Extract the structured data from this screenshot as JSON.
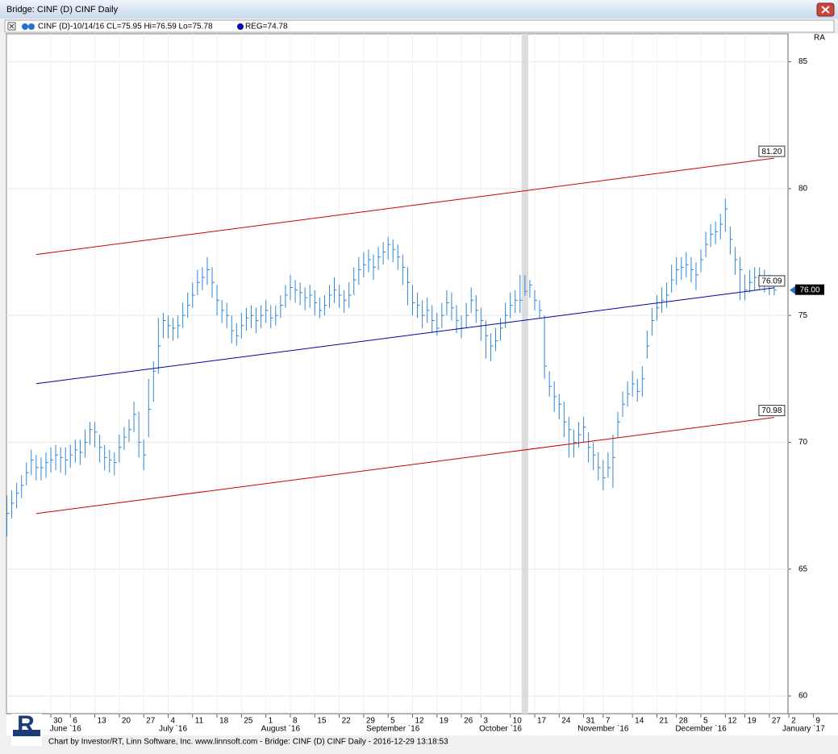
{
  "window_title": "Bridge: CINF (D) CINF Daily",
  "header_text": "CINF (D)-10/14/16 CL=75.95 Hi=76.59 Lo=75.78",
  "reg_text": "REG=74.78",
  "axis_corner_label": "RA",
  "logo": "R",
  "footer": "Chart by Investor/RT, Linn Software, Inc. www.linnsoft.com - Bridge: CINF (D) CINF Daily - 2016-12-29 13:18:53",
  "chart_data": {
    "type": "ohlc",
    "color": "#2f86d6",
    "ylim": [
      59.3,
      86.1
    ],
    "yticks": [
      60,
      65,
      70,
      75,
      80,
      85
    ],
    "xlim": [
      0,
      165
    ],
    "grid": true,
    "cursor_index": 106,
    "xticks": [
      {
        "value": 9,
        "label": "30"
      },
      {
        "value": 13,
        "label": "6"
      },
      {
        "value": 18,
        "label": "13"
      },
      {
        "value": 23,
        "label": "20"
      },
      {
        "value": 28,
        "label": "27"
      },
      {
        "value": 33,
        "label": "4"
      },
      {
        "value": 38,
        "label": "11"
      },
      {
        "value": 43,
        "label": "18"
      },
      {
        "value": 48,
        "label": "25"
      },
      {
        "value": 53,
        "label": "1"
      },
      {
        "value": 58,
        "label": "8"
      },
      {
        "value": 63,
        "label": "15"
      },
      {
        "value": 68,
        "label": "22"
      },
      {
        "value": 73,
        "label": "29"
      },
      {
        "value": 78,
        "label": "5"
      },
      {
        "value": 83,
        "label": "12"
      },
      {
        "value": 88,
        "label": "19"
      },
      {
        "value": 93,
        "label": "26"
      },
      {
        "value": 97,
        "label": "3"
      },
      {
        "value": 103,
        "label": "10"
      },
      {
        "value": 108,
        "label": "17"
      },
      {
        "value": 113,
        "label": "24"
      },
      {
        "value": 118,
        "label": "31"
      },
      {
        "value": 122,
        "label": "7"
      },
      {
        "value": 128,
        "label": "14"
      },
      {
        "value": 133,
        "label": "21"
      },
      {
        "value": 137,
        "label": "28"
      },
      {
        "value": 142,
        "label": "5"
      },
      {
        "value": 147,
        "label": "12"
      },
      {
        "value": 151,
        "label": "19"
      },
      {
        "value": 156,
        "label": "27"
      },
      {
        "value": 160,
        "label": "2"
      },
      {
        "value": 165,
        "label": "9"
      }
    ],
    "month_ticks": [
      {
        "value": 12,
        "label": "June `16"
      },
      {
        "value": 34,
        "label": "July `16"
      },
      {
        "value": 56,
        "label": "August `16"
      },
      {
        "value": 79,
        "label": "September `16"
      },
      {
        "value": 101,
        "label": "October `16"
      },
      {
        "value": 122,
        "label": "November `16"
      },
      {
        "value": 142,
        "label": "December `16"
      },
      {
        "value": 163,
        "label": "January `17"
      }
    ],
    "high": [
      67.9,
      68.1,
      68.4,
      68.7,
      69.2,
      69.7,
      69.5,
      69.4,
      69.6,
      69.8,
      69.9,
      69.8,
      69.8,
      69.9,
      70.1,
      70.1,
      70.5,
      70.8,
      70.8,
      70.3,
      69.9,
      69.7,
      69.6,
      70.3,
      70.6,
      70.9,
      71.6,
      71.2,
      70.1,
      72.5,
      73.2,
      74.9,
      75.1,
      75.0,
      74.9,
      75.0,
      75.5,
      75.9,
      76.3,
      76.8,
      76.9,
      77.3,
      76.9,
      76.2,
      75.6,
      75.5,
      75.0,
      74.7,
      75.1,
      75.3,
      75.4,
      75.3,
      75.4,
      75.6,
      75.4,
      75.4,
      75.8,
      76.2,
      76.6,
      76.4,
      76.3,
      76.1,
      76.2,
      76.0,
      75.7,
      75.8,
      76.2,
      76.5,
      76.2,
      76.0,
      76.3,
      76.9,
      77.3,
      77.5,
      77.6,
      77.4,
      77.7,
      77.9,
      78.1,
      78.0,
      77.8,
      77.4,
      76.9,
      76.2,
      75.9,
      75.6,
      75.7,
      75.4,
      75.1,
      75.5,
      76.0,
      75.9,
      75.4,
      75.0,
      75.5,
      76.1,
      75.8,
      75.3,
      74.8,
      74.3,
      74.5,
      74.9,
      75.5,
      75.9,
      76.0,
      76.6,
      76.59,
      76.4,
      76.0,
      75.6,
      75.0,
      72.8,
      72.4,
      71.9,
      71.6,
      71.0,
      70.5,
      70.8,
      71.0,
      70.4,
      70.0,
      69.6,
      69.3,
      69.6,
      70.3,
      71.2,
      72.0,
      72.4,
      72.8,
      72.5,
      73.0,
      74.4,
      75.3,
      75.8,
      76.1,
      76.3,
      77.0,
      77.3,
      77.3,
      77.5,
      77.3,
      77.1,
      77.6,
      78.3,
      78.6,
      78.7,
      79.0,
      79.6,
      78.5,
      77.7,
      77.3,
      76.6,
      76.8,
      76.9,
      76.9,
      76.8,
      76.6,
      76.4
    ],
    "low": [
      66.3,
      67.0,
      67.4,
      67.8,
      68.3,
      68.7,
      68.5,
      68.5,
      68.6,
      68.8,
      68.9,
      68.8,
      68.7,
      69.0,
      69.2,
      69.1,
      69.4,
      69.9,
      69.8,
      69.2,
      68.9,
      68.8,
      68.7,
      69.2,
      69.7,
      70.0,
      70.4,
      69.4,
      68.9,
      70.2,
      71.6,
      72.7,
      74.1,
      74.1,
      74.0,
      74.1,
      74.5,
      74.9,
      75.3,
      75.8,
      76.0,
      76.2,
      75.7,
      75.0,
      74.7,
      74.5,
      73.9,
      73.8,
      74.1,
      74.4,
      74.5,
      74.3,
      74.5,
      74.7,
      74.5,
      74.6,
      74.9,
      75.3,
      75.6,
      75.5,
      75.4,
      75.2,
      75.3,
      75.0,
      74.9,
      75.0,
      75.3,
      75.5,
      75.3,
      75.1,
      75.3,
      75.8,
      76.2,
      76.5,
      76.7,
      76.4,
      76.8,
      77.0,
      77.2,
      77.1,
      76.8,
      76.2,
      75.4,
      75.0,
      74.9,
      74.5,
      74.7,
      74.3,
      74.2,
      74.5,
      75.0,
      74.8,
      74.3,
      74.1,
      74.5,
      75.1,
      74.7,
      74.0,
      73.3,
      73.2,
      73.6,
      74.0,
      74.5,
      74.9,
      75.1,
      75.1,
      75.78,
      75.7,
      75.2,
      74.9,
      72.5,
      71.8,
      71.2,
      70.9,
      70.2,
      69.4,
      69.4,
      69.8,
      70.0,
      69.2,
      68.9,
      68.5,
      68.1,
      68.6,
      68.2,
      70.2,
      71.0,
      71.4,
      71.8,
      71.6,
      71.8,
      73.3,
      74.2,
      74.8,
      75.1,
      75.3,
      75.9,
      76.2,
      76.4,
      76.5,
      76.3,
      76.0,
      76.7,
      77.3,
      77.7,
      77.8,
      78.0,
      78.3,
      77.4,
      76.6,
      75.6,
      75.6,
      75.9,
      76.0,
      76.0,
      75.9,
      75.8,
      75.8
    ],
    "close": [
      67.2,
      67.6,
      68.0,
      68.3,
      68.8,
      69.3,
      69.0,
      69.0,
      69.2,
      69.3,
      69.5,
      69.4,
      69.3,
      69.5,
      69.7,
      69.6,
      70.0,
      70.5,
      70.4,
      69.8,
      69.4,
      69.3,
      69.2,
      69.8,
      70.2,
      70.5,
      71.1,
      70.0,
      69.5,
      71.3,
      72.8,
      73.8,
      74.8,
      74.6,
      74.5,
      74.6,
      75.0,
      75.4,
      75.8,
      76.3,
      76.5,
      76.8,
      76.3,
      75.6,
      75.2,
      75.0,
      74.4,
      74.2,
      74.6,
      74.9,
      75.0,
      74.8,
      75.0,
      75.2,
      74.9,
      75.0,
      75.4,
      75.8,
      76.1,
      76.0,
      75.9,
      75.7,
      75.8,
      75.5,
      75.2,
      75.4,
      75.8,
      76.0,
      75.8,
      75.6,
      75.8,
      76.4,
      76.8,
      77.0,
      77.2,
      76.9,
      77.3,
      77.5,
      77.8,
      77.6,
      77.3,
      76.9,
      76.3,
      75.5,
      75.4,
      75.0,
      75.2,
      74.8,
      74.5,
      75.0,
      75.5,
      75.3,
      74.8,
      74.5,
      75.0,
      75.6,
      75.2,
      74.8,
      74.2,
      73.8,
      74.0,
      74.5,
      75.0,
      75.4,
      75.6,
      75.6,
      75.95,
      76.2,
      75.6,
      75.2,
      73.0,
      72.2,
      71.8,
      71.5,
      70.8,
      70.5,
      70.0,
      70.3,
      70.6,
      69.8,
      69.5,
      69.0,
      68.6,
      69.0,
      69.4,
      70.8,
      71.5,
      71.9,
      72.3,
      72.0,
      72.5,
      73.8,
      74.8,
      75.3,
      75.6,
      75.8,
      76.4,
      76.8,
      76.9,
      77.0,
      76.8,
      76.6,
      77.2,
      77.8,
      78.2,
      78.3,
      78.6,
      79.2,
      78.0,
      77.2,
      76.8,
      76.0,
      76.3,
      76.5,
      76.4,
      76.3,
      76.2,
      76.0
    ],
    "lines": [
      {
        "color": "#cc0000",
        "x": [
          6,
          157
        ],
        "values": [
          77.4,
          81.2
        ],
        "value_labels": [
          null,
          "81.20"
        ]
      },
      {
        "color": "#0000aa",
        "x": [
          6,
          157
        ],
        "values": [
          72.31,
          76.09
        ],
        "value_labels": [
          null,
          "76.09"
        ]
      },
      {
        "color": "#cc0000",
        "x": [
          6,
          157
        ],
        "values": [
          67.19,
          70.98
        ],
        "value_labels": [
          null,
          "70.98"
        ]
      }
    ],
    "last_price": {
      "value": 76,
      "label": "76.00"
    }
  }
}
